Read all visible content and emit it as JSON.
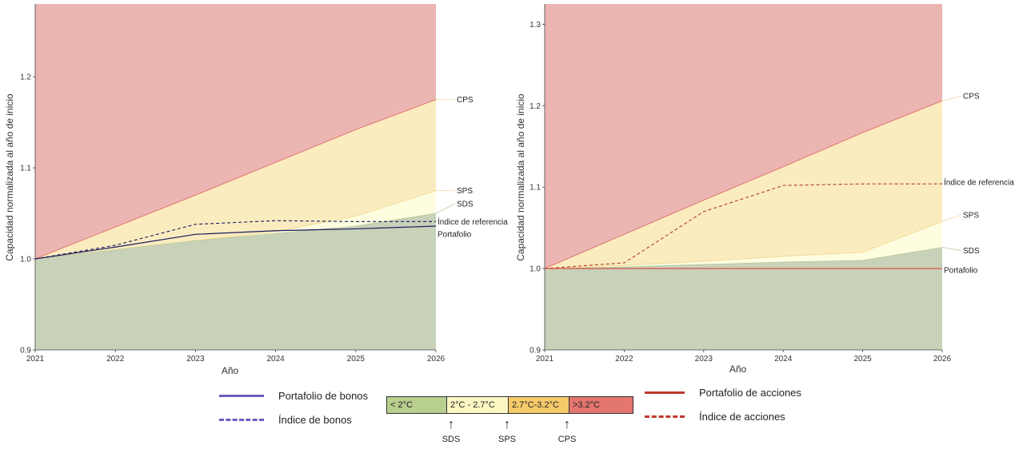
{
  "colors": {
    "zone_below_2": "#c8d2b8",
    "zone_2_27": "#fefde0",
    "zone_27_32": "#fbecc0",
    "zone_above_32": "#ebb5b2",
    "bond_line": "#5b4fb5",
    "equity_line": "#c0392b",
    "portfolio_line_left": "#1a1a5e",
    "benchmark_line_left": "#1a1a5e",
    "portfolio_line_right": "#d9534f",
    "benchmark_line_right": "#b03a2e"
  },
  "chart_data": [
    {
      "type": "area",
      "title": "",
      "xlabel": "Año",
      "ylabel": "Capacidad normalizada al año de inicio",
      "x": [
        2021,
        2022,
        2023,
        2024,
        2025,
        2026
      ],
      "xlim": [
        2021,
        2026
      ],
      "ylim": [
        0.9,
        1.28
      ],
      "yticks": [
        0.9,
        1.0,
        1.1,
        1.2
      ],
      "ytick_labels": [
        "0.9",
        "1.0",
        "1.1",
        "1.2"
      ],
      "xtick_labels": [
        "2021",
        "2022",
        "2023",
        "2024",
        "2025",
        "2026"
      ],
      "grid": false,
      "scenarios": [
        {
          "name": "SDS",
          "values": [
            1.0,
            1.01,
            1.02,
            1.028,
            1.036,
            1.05
          ]
        },
        {
          "name": "SPS",
          "values": [
            1.0,
            1.01,
            1.02,
            1.03,
            1.047,
            1.075
          ]
        },
        {
          "name": "CPS",
          "values": [
            1.0,
            1.035,
            1.07,
            1.106,
            1.142,
            1.175
          ]
        }
      ],
      "series": [
        {
          "name": "Índice de referencia",
          "style": "dashed",
          "values": [
            1.0,
            1.015,
            1.038,
            1.042,
            1.041,
            1.041
          ]
        },
        {
          "name": "Portafolio",
          "style": "solid",
          "values": [
            1.0,
            1.013,
            1.027,
            1.031,
            1.033,
            1.036
          ]
        }
      ],
      "end_labels": [
        "CPS",
        "SPS",
        "SDS",
        "Índice de referencia",
        "Portafolio"
      ]
    },
    {
      "type": "area",
      "title": "",
      "xlabel": "Año",
      "ylabel": "Capacidad normalizada al año de inicio",
      "x": [
        2021,
        2022,
        2023,
        2024,
        2025,
        2026
      ],
      "xlim": [
        2021,
        2026
      ],
      "ylim": [
        0.9,
        1.325
      ],
      "yticks": [
        0.9,
        1.0,
        1.1,
        1.2,
        1.3
      ],
      "ytick_labels": [
        "0.9",
        "1.0",
        "1.1",
        "1.2",
        "1.3"
      ],
      "xtick_labels": [
        "2021",
        "2022",
        "2023",
        "2024",
        "2025",
        "2026"
      ],
      "grid": false,
      "scenarios": [
        {
          "name": "SDS",
          "values": [
            1.0,
            1.002,
            1.005,
            1.008,
            1.01,
            1.026
          ]
        },
        {
          "name": "SPS",
          "values": [
            1.0,
            1.004,
            1.009,
            1.015,
            1.02,
            1.058
          ]
        },
        {
          "name": "CPS",
          "values": [
            1.0,
            1.042,
            1.084,
            1.125,
            1.167,
            1.206
          ]
        }
      ],
      "series": [
        {
          "name": "Índice de referencia",
          "style": "dashed",
          "values": [
            1.0,
            1.007,
            1.07,
            1.102,
            1.104,
            1.104
          ]
        },
        {
          "name": "Portafolio",
          "style": "solid",
          "values": [
            1.0,
            1.0,
            1.0,
            1.0,
            1.0,
            1.0
          ]
        }
      ],
      "end_labels": [
        "CPS",
        "Índice de referencia",
        "SPS",
        "SDS",
        "Portafolio"
      ]
    }
  ],
  "legend": {
    "bond_portfolio": "Portafolio de bonos",
    "bond_index": "Índice de bonos",
    "equity_portfolio": "Portafolio de acciones",
    "equity_index": "Índice de acciones",
    "scale": [
      {
        "label": "< 2°C",
        "color": "#b8cf8e"
      },
      {
        "label": "2°C - 2.7°C",
        "color": "#fdf7c4"
      },
      {
        "label": "2.7°C-3.2°C",
        "color": "#f6c96a"
      },
      {
        "label": ">3.2°C",
        "color": "#e3766f"
      }
    ],
    "arrows": [
      {
        "glyph": "↑",
        "label": "SDS"
      },
      {
        "glyph": "↑",
        "label": "SPS"
      },
      {
        "glyph": "↑",
        "label": "CPS"
      }
    ]
  }
}
